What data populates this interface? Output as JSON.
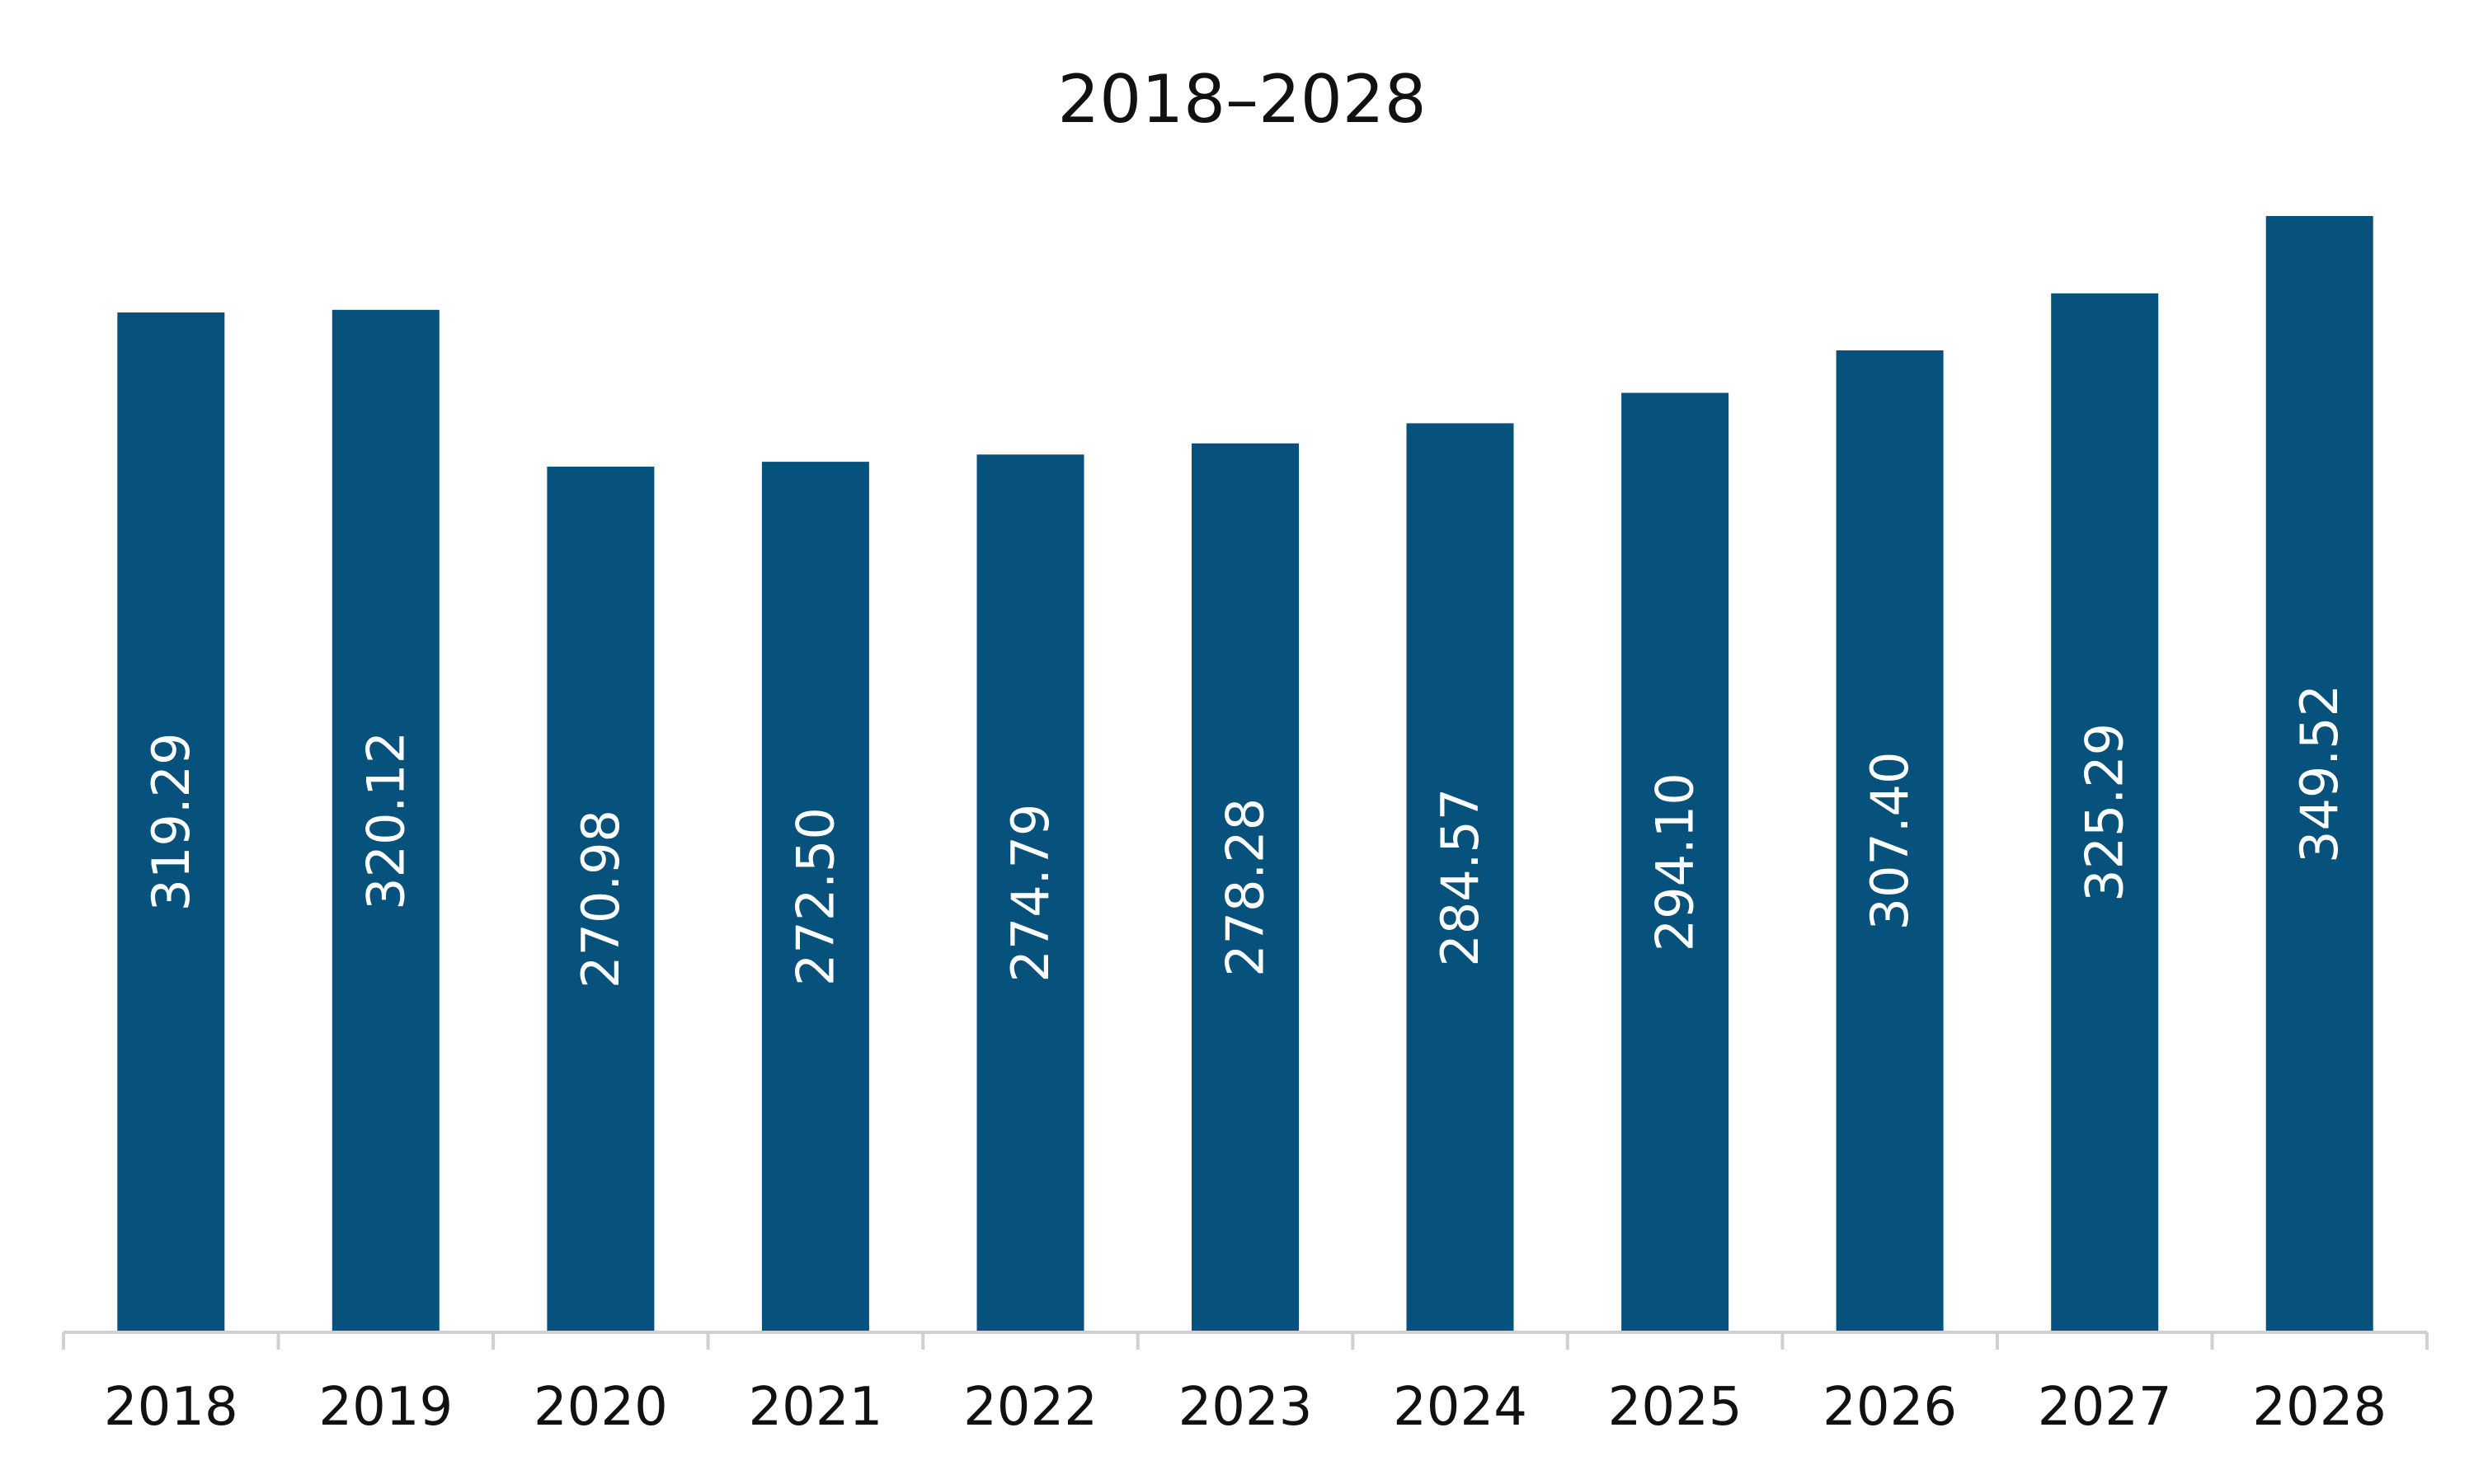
{
  "chart_data": {
    "type": "bar",
    "title": "2018–2028",
    "categories": [
      "2018",
      "2019",
      "2020",
      "2021",
      "2022",
      "2023",
      "2024",
      "2025",
      "2026",
      "2027",
      "2028"
    ],
    "series": [
      {
        "values": [
          319.29,
          320.12,
          270.98,
          272.5,
          274.79,
          278.28,
          284.57,
          294.1,
          307.4,
          325.29,
          349.52
        ],
        "labels": [
          "319.29",
          "320.12",
          "270.98",
          "272.50",
          "274.79",
          "278.28",
          "284.57",
          "294.10",
          "307.40",
          "325.29",
          "349.52"
        ]
      }
    ],
    "xlabel": "",
    "ylabel": "",
    "ylim": [
      0,
      360
    ],
    "grid": false,
    "legend": "none",
    "colors": {
      "bar": "#07517D",
      "axis": "#D0D0D0",
      "data_label": "#FFFFFF",
      "text": "#111111"
    }
  }
}
